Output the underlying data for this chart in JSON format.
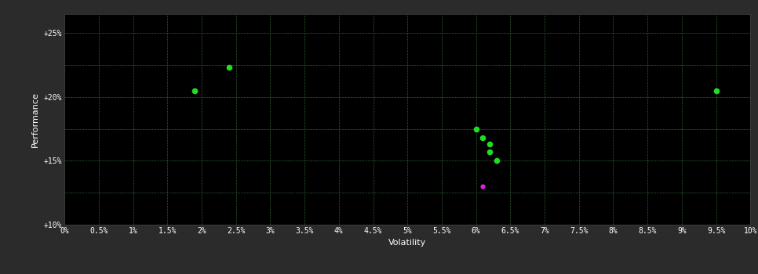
{
  "background_color": "#2b2b2b",
  "plot_bg_color": "#000000",
  "grid_color": "#336633",
  "text_color": "#ffffff",
  "xlabel": "Volatility",
  "ylabel": "Performance",
  "xlim": [
    0,
    0.1
  ],
  "ylim": [
    0.1,
    0.265
  ],
  "xticks": [
    0.0,
    0.005,
    0.01,
    0.015,
    0.02,
    0.025,
    0.03,
    0.035,
    0.04,
    0.045,
    0.05,
    0.055,
    0.06,
    0.065,
    0.07,
    0.075,
    0.08,
    0.085,
    0.09,
    0.095,
    0.1
  ],
  "xtick_labels": [
    "0%",
    "0.5%",
    "1%",
    "1.5%",
    "2%",
    "2.5%",
    "3%",
    "3.5%",
    "4%",
    "4.5%",
    "5%",
    "5.5%",
    "6%",
    "6.5%",
    "7%",
    "7.5%",
    "8%",
    "8.5%",
    "9%",
    "9.5%",
    "10%"
  ],
  "yticks": [
    0.1,
    0.15,
    0.2,
    0.25
  ],
  "ytick_labels": [
    "+10%",
    "+15%",
    "+20%",
    "+25%"
  ],
  "green_points": [
    [
      0.019,
      0.205
    ],
    [
      0.024,
      0.223
    ],
    [
      0.06,
      0.175
    ],
    [
      0.061,
      0.168
    ],
    [
      0.062,
      0.163
    ],
    [
      0.062,
      0.157
    ],
    [
      0.063,
      0.15
    ],
    [
      0.095,
      0.205
    ]
  ],
  "magenta_points": [
    [
      0.061,
      0.13
    ]
  ],
  "green_color": "#22dd22",
  "magenta_color": "#dd22dd",
  "dot_size": 30,
  "magenta_dot_size": 20,
  "figsize": [
    9.66,
    3.5
  ],
  "dpi": 100
}
